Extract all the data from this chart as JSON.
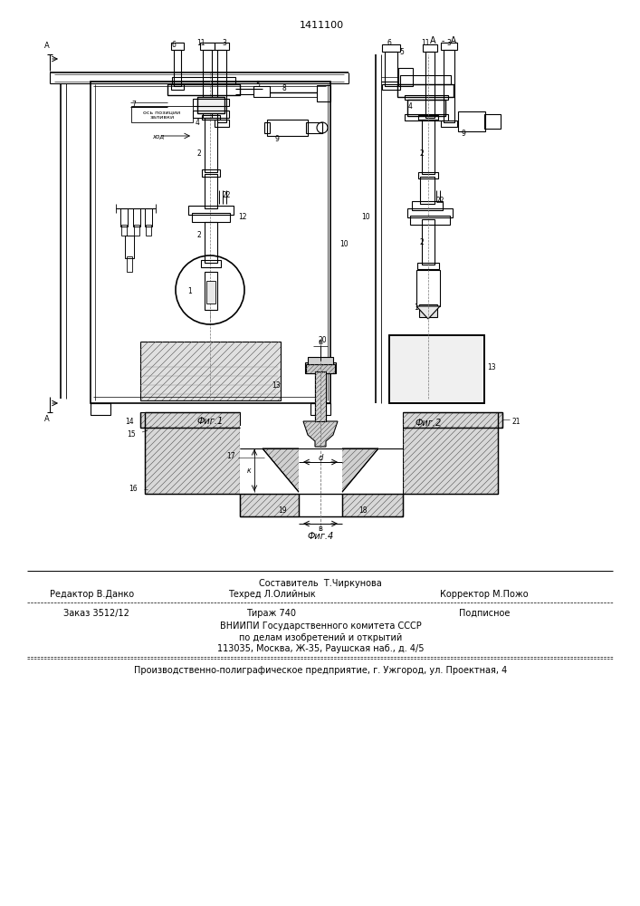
{
  "patent_number": "1411100",
  "background_color": "#ffffff",
  "fig1_caption": "Фиг.1",
  "fig2_caption": "Фиг.2",
  "fig4_caption": "Фиг.4",
  "footer_line1_center": "Составитель  Т.Чиркунова",
  "footer_line2_left": "Редактор В.Данко",
  "footer_line2_center": "Техред Л.Олийнык",
  "footer_line2_right": "Корректор М.Пожо",
  "footer_line3_left": "Заказ 3512/12",
  "footer_line3_center": "Тираж 740",
  "footer_line3_right": "Подписное",
  "footer_line4": "ВНИИПИ Государственного комитета СССР",
  "footer_line5": "по делам изобретений и открытий",
  "footer_line6": "113035, Москва, Ж-35, Раушская наб., д. 4/5",
  "footer_line7": "Производственно-полиграфическое предприятие, г. Ужгород, ул. Проектная, 4",
  "label_axis_zalivki": "ось позиции\nзаливки",
  "label_khod": "ход"
}
